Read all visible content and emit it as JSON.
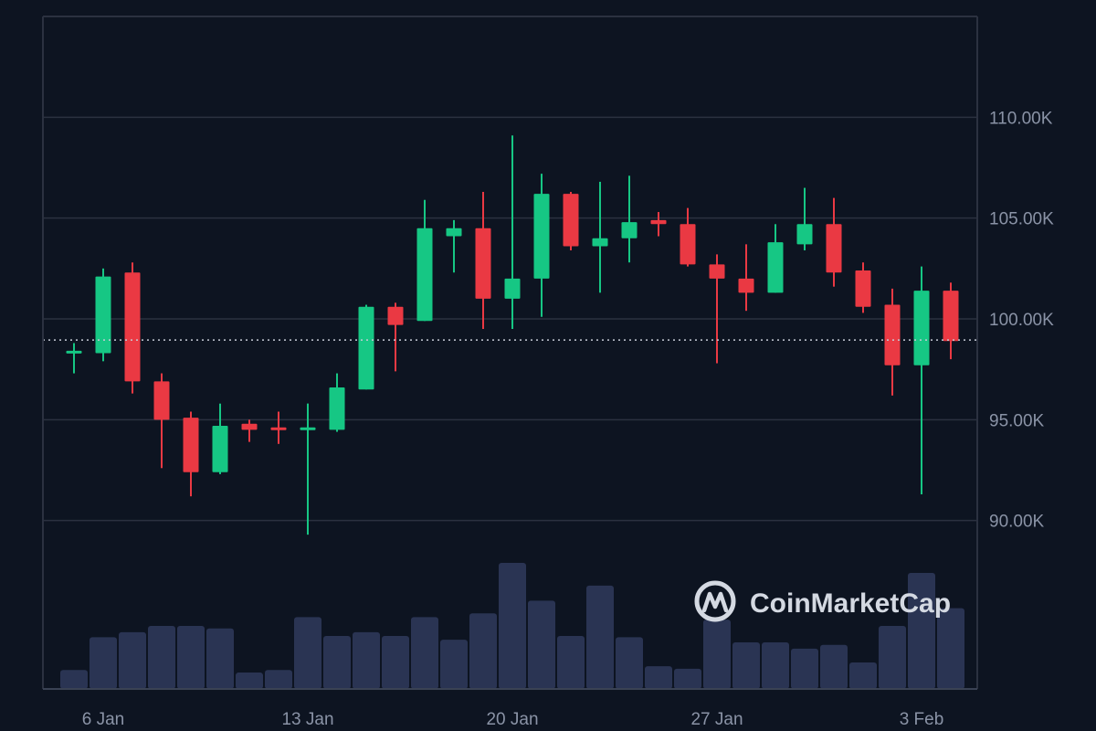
{
  "chart_data": {
    "type": "candlestick",
    "title": "",
    "xlabel": "",
    "ylabel": "",
    "ylim": [
      85000,
      115000
    ],
    "grid": true,
    "y_ticks": [
      {
        "value": 90000,
        "label": "90.00K"
      },
      {
        "value": 95000,
        "label": "95.00K"
      },
      {
        "value": 100000,
        "label": "100.00K"
      },
      {
        "value": 105000,
        "label": "105.00K"
      },
      {
        "value": 110000,
        "label": "110.00K"
      }
    ],
    "x_ticks": [
      {
        "date": "2025-01-06",
        "label": "6 Jan"
      },
      {
        "date": "2025-01-13",
        "label": "13 Jan"
      },
      {
        "date": "2025-01-20",
        "label": "20 Jan"
      },
      {
        "date": "2025-01-27",
        "label": "27 Jan"
      },
      {
        "date": "2025-02-03",
        "label": "3 Feb"
      }
    ],
    "current_price": 98950,
    "colors": {
      "up": "#16c784",
      "down": "#ea3943",
      "volume": "#2a3453",
      "grid": "#2b3140",
      "current_price_line": "#c7ccd6"
    },
    "volume_unit": "relative to the largest volume bar",
    "candles": [
      {
        "date": "2025-01-05",
        "open": 98300,
        "high": 98800,
        "low": 97300,
        "close": 98400,
        "volume": 0.15
      },
      {
        "date": "2025-01-06",
        "open": 98300,
        "high": 102500,
        "low": 97900,
        "close": 102100,
        "volume": 0.41
      },
      {
        "date": "2025-01-07",
        "open": 102300,
        "high": 102800,
        "low": 96300,
        "close": 96900,
        "volume": 0.45
      },
      {
        "date": "2025-01-08",
        "open": 96900,
        "high": 97300,
        "low": 92600,
        "close": 95000,
        "volume": 0.5
      },
      {
        "date": "2025-01-09",
        "open": 95100,
        "high": 95400,
        "low": 91200,
        "close": 92400,
        "volume": 0.5
      },
      {
        "date": "2025-01-10",
        "open": 92400,
        "high": 95800,
        "low": 92300,
        "close": 94700,
        "volume": 0.48
      },
      {
        "date": "2025-01-11",
        "open": 94800,
        "high": 95000,
        "low": 93900,
        "close": 94500,
        "volume": 0.13
      },
      {
        "date": "2025-01-12",
        "open": 94600,
        "high": 95400,
        "low": 93800,
        "close": 94500,
        "volume": 0.15
      },
      {
        "date": "2025-01-13",
        "open": 94500,
        "high": 95800,
        "low": 89300,
        "close": 94600,
        "volume": 0.57
      },
      {
        "date": "2025-01-14",
        "open": 94500,
        "high": 97300,
        "low": 94400,
        "close": 96600,
        "volume": 0.42
      },
      {
        "date": "2025-01-15",
        "open": 96500,
        "high": 100700,
        "low": 96500,
        "close": 100600,
        "volume": 0.45
      },
      {
        "date": "2025-01-16",
        "open": 100600,
        "high": 100800,
        "low": 97400,
        "close": 99700,
        "volume": 0.42
      },
      {
        "date": "2025-01-17",
        "open": 99900,
        "high": 105900,
        "low": 99900,
        "close": 104500,
        "volume": 0.57
      },
      {
        "date": "2025-01-18",
        "open": 104100,
        "high": 104900,
        "low": 102300,
        "close": 104500,
        "volume": 0.39
      },
      {
        "date": "2025-01-19",
        "open": 104500,
        "high": 106300,
        "low": 99500,
        "close": 101000,
        "volume": 0.6
      },
      {
        "date": "2025-01-20",
        "open": 101000,
        "high": 109100,
        "low": 99500,
        "close": 102000,
        "volume": 1.0
      },
      {
        "date": "2025-01-21",
        "open": 102000,
        "high": 107200,
        "low": 100100,
        "close": 106200,
        "volume": 0.7
      },
      {
        "date": "2025-01-22",
        "open": 106200,
        "high": 106300,
        "low": 103400,
        "close": 103600,
        "volume": 0.42
      },
      {
        "date": "2025-01-23",
        "open": 103600,
        "high": 106800,
        "low": 101300,
        "close": 104000,
        "volume": 0.82
      },
      {
        "date": "2025-01-24",
        "open": 104000,
        "high": 107100,
        "low": 102800,
        "close": 104800,
        "volume": 0.41
      },
      {
        "date": "2025-01-25",
        "open": 104900,
        "high": 105300,
        "low": 104100,
        "close": 104700,
        "volume": 0.18
      },
      {
        "date": "2025-01-26",
        "open": 104700,
        "high": 105500,
        "low": 102600,
        "close": 102700,
        "volume": 0.16
      },
      {
        "date": "2025-01-27",
        "open": 102700,
        "high": 103200,
        "low": 97800,
        "close": 102000,
        "volume": 0.55
      },
      {
        "date": "2025-01-28",
        "open": 102000,
        "high": 103700,
        "low": 100400,
        "close": 101300,
        "volume": 0.37
      },
      {
        "date": "2025-01-29",
        "open": 101300,
        "high": 104700,
        "low": 101300,
        "close": 103800,
        "volume": 0.37
      },
      {
        "date": "2025-01-30",
        "open": 103700,
        "high": 106500,
        "low": 103400,
        "close": 104700,
        "volume": 0.32
      },
      {
        "date": "2025-01-31",
        "open": 104700,
        "high": 106000,
        "low": 101600,
        "close": 102300,
        "volume": 0.35
      },
      {
        "date": "2025-02-01",
        "open": 102400,
        "high": 102800,
        "low": 100300,
        "close": 100600,
        "volume": 0.21
      },
      {
        "date": "2025-02-02",
        "open": 100700,
        "high": 101500,
        "low": 96200,
        "close": 97700,
        "volume": 0.5
      },
      {
        "date": "2025-02-03",
        "open": 97700,
        "high": 102600,
        "low": 91300,
        "close": 101400,
        "volume": 0.92
      },
      {
        "date": "2025-02-04",
        "open": 101400,
        "high": 101800,
        "low": 98000,
        "close": 98900,
        "volume": 0.64
      }
    ]
  },
  "watermark": {
    "brand_name": "CoinMarketCap",
    "logo_icon": "coinmarketcap-logo-icon"
  }
}
